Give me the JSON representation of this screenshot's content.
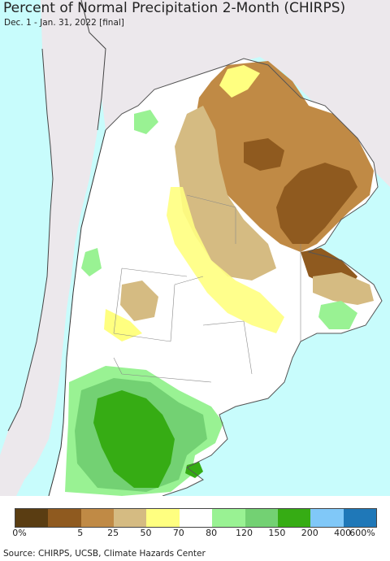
{
  "header": {
    "title": "Percent of Normal Precipitation 2-Month (CHIRPS)",
    "subtitle": "Dec. 1 - Jan. 31, 2022 [final]"
  },
  "legend": {
    "colors": [
      "#5a3d12",
      "#8f5a1f",
      "#c08a45",
      "#d5bb82",
      "#ffff80",
      "#ffffff",
      "#99f293",
      "#73d173",
      "#36ac14",
      "#80c8f8",
      "#1f78b8"
    ],
    "labels": [
      "0%",
      "5",
      "25",
      "50",
      "70",
      "80",
      "120",
      "150",
      "200",
      "400",
      "600%"
    ]
  },
  "colors": {
    "ocean": "#c8fcfc",
    "land_outside": "#ece8ec",
    "border": "#555555"
  },
  "footer": {
    "source": "Source: CHIRPS, UCSB, Climate Hazards Center"
  }
}
